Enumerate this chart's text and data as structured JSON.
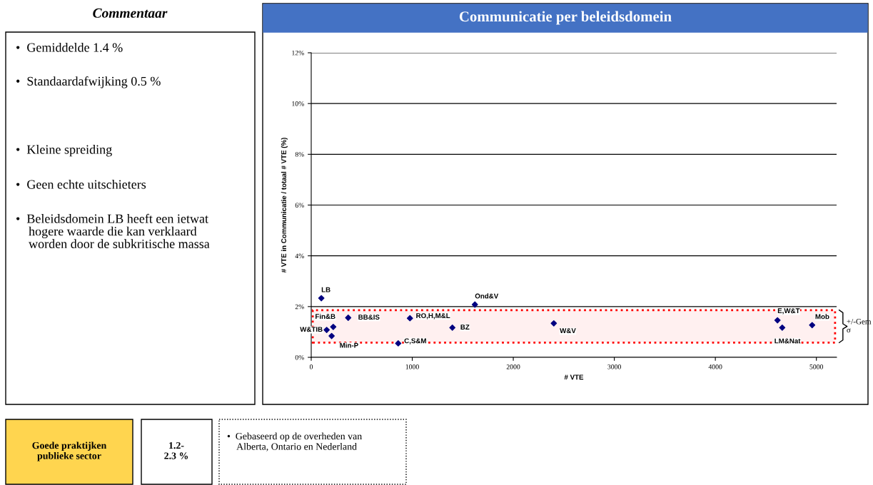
{
  "chart_data": {
    "type": "scatter",
    "title": "Communicatie per beleidsdomein",
    "xlabel": "# VTE",
    "ylabel": "# VTE in Communicatie / totaal # VTE (%)",
    "series": [
      {
        "color": "#000080",
        "x": [
          100,
          1620,
          218,
          366,
          153,
          202,
          977,
          1397,
          861,
          2401,
          4615,
          4662,
          4958
        ],
        "values": [
          2.33,
          2.08,
          1.2,
          1.56,
          1.08,
          0.84,
          1.54,
          1.17,
          0.55,
          1.34,
          1.46,
          1.17,
          1.27
        ]
      }
    ],
    "marker": "diamond",
    "xlim": [
      0,
      5200
    ],
    "xticks": [
      0,
      1000,
      2000,
      3000,
      4000,
      5000
    ],
    "ylim": [
      0,
      12
    ],
    "yticks": [
      {
        "value": 0,
        "label": "0%"
      },
      {
        "value": 2,
        "label": "2%"
      },
      {
        "value": 4,
        "label": "4%"
      },
      {
        "value": 6,
        "label": "6%"
      },
      {
        "value": 8,
        "label": "8%"
      },
      {
        "value": 10,
        "label": "10%"
      },
      {
        "value": 12,
        "label": "12%"
      }
    ],
    "grid": "y",
    "legend": false,
    "bands": [
      {
        "axis": "y",
        "from": 0.58,
        "to": 1.86,
        "label": "+/-Gem σ",
        "color": "#ff0000"
      }
    ],
    "annotations": [
      {
        "text": "LB",
        "x": 100,
        "y": 2.33
      },
      {
        "text": "Ond&V",
        "x": 1620,
        "y": 2.08
      },
      {
        "text": "Fin&B",
        "x": 218,
        "y": 1.2
      },
      {
        "text": "BB&IS",
        "x": 366,
        "y": 1.56
      },
      {
        "text": "W&TIB",
        "x": 153,
        "y": 1.08
      },
      {
        "text": "Min-P",
        "x": 202,
        "y": 0.84
      },
      {
        "text": "RO,H,M&L",
        "x": 977,
        "y": 1.54
      },
      {
        "text": "BZ",
        "x": 1397,
        "y": 1.17
      },
      {
        "text": "C,S&M",
        "x": 861,
        "y": 0.55
      },
      {
        "text": "W&V",
        "x": 2401,
        "y": 1.34
      },
      {
        "text": "E,W&T",
        "x": 4615,
        "y": 1.46
      },
      {
        "text": "LM&Nat",
        "x": 4662,
        "y": 1.17
      },
      {
        "text": "Mob",
        "x": 4958,
        "y": 1.27
      },
      "Commentaar",
      "•  Gemiddelde 1.4 %",
      "•  Standaardafwijking 0.5 %",
      "•  Kleine spreiding",
      "•  Geen echte uitschieters",
      "•  Beleidsdomein LB heeft een ietwat\n    hogere waarde die kan verklaard\n    worden door de subkritische massa",
      "Goede praktijken\npublieke sector",
      "1.2-\n2.3 %",
      "•  Gebaseerd op de overheden van\n    Alberta, Ontario en Nederland"
    ]
  }
}
